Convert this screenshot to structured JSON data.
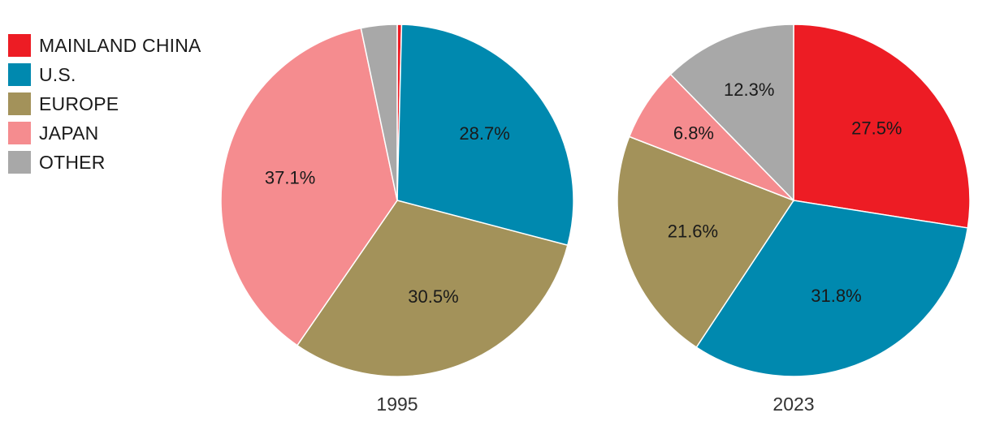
{
  "legend": [
    {
      "label": "MAINLAND CHINA",
      "color": "#ED1C24"
    },
    {
      "label": "U.S.",
      "color": "#0089AF"
    },
    {
      "label": "EUROPE",
      "color": "#A3925A"
    },
    {
      "label": "JAPAN",
      "color": "#F58C8F"
    },
    {
      "label": "OTHER",
      "color": "#A8A8A8"
    }
  ],
  "chart_data": [
    {
      "type": "pie",
      "title": "1995",
      "slices": [
        {
          "name": "MAINLAND CHINA",
          "value": 0.4,
          "label": "",
          "color": "#ED1C24"
        },
        {
          "name": "U.S.",
          "value": 28.7,
          "label": "28.7%",
          "color": "#0089AF"
        },
        {
          "name": "EUROPE",
          "value": 30.5,
          "label": "30.5%",
          "color": "#A3925A"
        },
        {
          "name": "JAPAN",
          "value": 37.1,
          "label": "37.1%",
          "color": "#F58C8F"
        },
        {
          "name": "OTHER",
          "value": 3.3,
          "label": "",
          "color": "#A8A8A8"
        }
      ]
    },
    {
      "type": "pie",
      "title": "2023",
      "slices": [
        {
          "name": "MAINLAND CHINA",
          "value": 27.5,
          "label": "27.5%",
          "color": "#ED1C24"
        },
        {
          "name": "U.S.",
          "value": 31.8,
          "label": "31.8%",
          "color": "#0089AF"
        },
        {
          "name": "EUROPE",
          "value": 21.6,
          "label": "21.6%",
          "color": "#A3925A"
        },
        {
          "name": "JAPAN",
          "value": 6.8,
          "label": "6.8%",
          "color": "#F58C8F"
        },
        {
          "name": "OTHER",
          "value": 12.3,
          "label": "12.3%",
          "color": "#A8A8A8"
        }
      ]
    }
  ]
}
